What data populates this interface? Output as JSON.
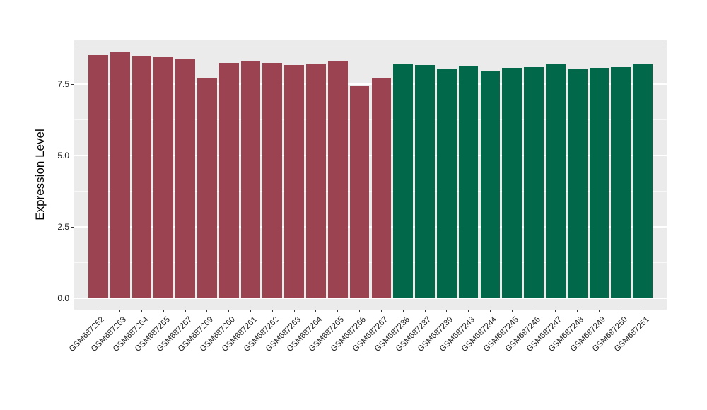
{
  "chart_data": {
    "type": "bar",
    "title": "",
    "xlabel": "",
    "ylabel": "Expression Level",
    "ylim": [
      -0.4,
      9.05
    ],
    "yticks": [
      0.0,
      2.5,
      5.0,
      7.5
    ],
    "ytick_labels": [
      "0.0",
      "2.5",
      "5.0",
      "7.5"
    ],
    "yminor": [
      1.25,
      3.75,
      6.25,
      8.75
    ],
    "grid": true,
    "legend_position": "none",
    "panel_background": "#EBEBEB",
    "grid_color": "#FFFFFF",
    "categories": [
      "GSM687252",
      "GSM687253",
      "GSM687254",
      "GSM687255",
      "GSM687257",
      "GSM687259",
      "GSM687260",
      "GSM687261",
      "GSM687262",
      "GSM687263",
      "GSM687264",
      "GSM687265",
      "GSM687266",
      "GSM687267",
      "GSM687236",
      "GSM687237",
      "GSM687239",
      "GSM687243",
      "GSM687244",
      "GSM687245",
      "GSM687246",
      "GSM687247",
      "GSM687248",
      "GSM687249",
      "GSM687250",
      "GSM687251"
    ],
    "values": [
      8.54,
      8.65,
      8.51,
      8.49,
      8.39,
      7.73,
      8.26,
      8.34,
      8.26,
      8.17,
      8.24,
      8.32,
      7.44,
      7.73,
      8.2,
      8.17,
      8.06,
      8.14,
      7.97,
      8.08,
      8.11,
      8.22,
      8.07,
      8.09,
      8.11,
      8.24
    ],
    "bar_colors": [
      "#9B4351",
      "#9B4351",
      "#9B4351",
      "#9B4351",
      "#9B4351",
      "#9B4351",
      "#9B4351",
      "#9B4351",
      "#9B4351",
      "#9B4351",
      "#9B4351",
      "#9B4351",
      "#9B4351",
      "#9B4351",
      "#02684A",
      "#02684A",
      "#02684A",
      "#02684A",
      "#02684A",
      "#02684A",
      "#02684A",
      "#02684A",
      "#02684A",
      "#02684A",
      "#02684A",
      "#02684A"
    ],
    "group_colors": {
      "left_group": "#9B4351",
      "right_group": "#02684A"
    }
  }
}
